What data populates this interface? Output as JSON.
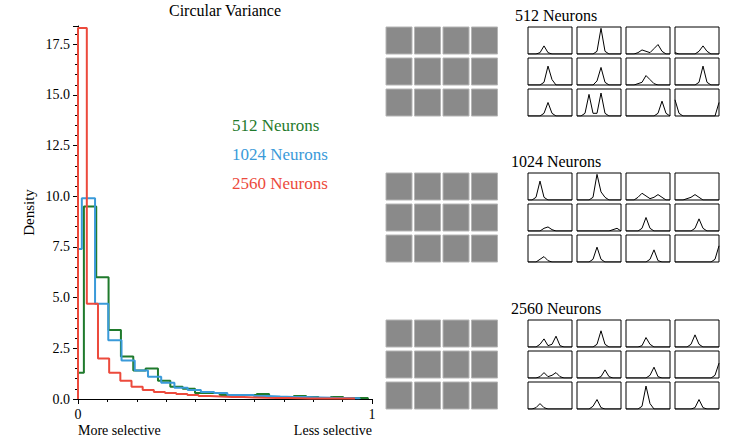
{
  "chart_data": [
    {
      "type": "histogram",
      "title": "Circular Variance",
      "ylabel": "Density",
      "x_annotations": [
        {
          "x": 0,
          "text": "More selective"
        },
        {
          "x": 1,
          "text": "Less selective"
        }
      ],
      "xlim": [
        0,
        1
      ],
      "xticks": [
        0,
        1
      ],
      "ylim": [
        0,
        18.4
      ],
      "yticks": [
        {
          "value": 0,
          "label": "0.0"
        },
        {
          "value": 2.5,
          "label": "2.5"
        },
        {
          "value": 5,
          "label": "5.0"
        },
        {
          "value": 7.5,
          "label": "7.5"
        },
        {
          "value": 10,
          "label": "10.0"
        },
        {
          "value": 12.5,
          "label": "12.5"
        },
        {
          "value": 15,
          "label": "15.0"
        },
        {
          "value": 17.5,
          "label": "17.5"
        }
      ],
      "grid": false,
      "legend": "right",
      "series": [
        {
          "name": "512 Neurons",
          "color": "#1f7a2c",
          "bins": [
            0,
            0.02,
            0.062,
            0.104,
            0.146,
            0.188,
            0.23,
            0.272,
            0.314,
            0.356,
            0.398,
            0.44,
            0.482,
            0.524,
            0.566,
            0.608,
            0.65,
            0.692,
            0.734,
            0.776,
            0.818,
            0.86,
            0.902,
            0.944,
            0.986
          ],
          "values": [
            1.3,
            9.5,
            6.0,
            3.4,
            2.1,
            1.4,
            1.5,
            0.9,
            0.6,
            0.5,
            0.3,
            0.3,
            0.2,
            0.15,
            0.2,
            0.25,
            0.1,
            0.1,
            0.15,
            0.1,
            0.05,
            0.1,
            0.05,
            0.05
          ]
        },
        {
          "name": "1024 Neurons",
          "color": "#3a9ad9",
          "bins": [
            0,
            0.013,
            0.058,
            0.103,
            0.148,
            0.193,
            0.238,
            0.283,
            0.328,
            0.373,
            0.418,
            0.463,
            0.508,
            0.553,
            0.598,
            0.643,
            0.688,
            0.733,
            0.778,
            0.823,
            0.868,
            0.913,
            0.958
          ],
          "values": [
            7.4,
            9.9,
            4.7,
            2.9,
            1.9,
            1.4,
            1.1,
            0.8,
            0.55,
            0.45,
            0.35,
            0.3,
            0.2,
            0.2,
            0.15,
            0.12,
            0.1,
            0.1,
            0.08,
            0.06,
            0.05,
            0.04
          ]
        },
        {
          "name": "2560 Neurons",
          "color": "#ec4a3c",
          "bins": [
            0,
            0.03,
            0.068,
            0.106,
            0.144,
            0.182,
            0.22,
            0.258,
            0.296,
            0.334,
            0.372,
            0.41,
            0.448,
            0.486,
            0.524,
            0.562,
            0.6,
            0.638,
            0.676,
            0.714,
            0.752,
            0.79,
            0.828,
            0.866,
            0.904,
            0.942
          ],
          "values": [
            18.3,
            4.7,
            2.0,
            1.3,
            0.9,
            0.6,
            0.45,
            0.35,
            0.3,
            0.25,
            0.2,
            0.15,
            0.12,
            0.1,
            0.1,
            0.08,
            0.06,
            0.05,
            0.05,
            0.04,
            0.03,
            0.03,
            0.02,
            0.02,
            0.02
          ]
        }
      ]
    },
    {
      "type": "line",
      "title": "512 Neurons",
      "tick_labels": false,
      "ylim": [
        0,
        1
      ],
      "color": "#000000",
      "patches": 12,
      "series": [
        {
          "values": [
            0,
            0,
            0,
            0.05,
            0.3,
            0.05,
            0,
            0,
            0,
            0,
            0,
            0
          ]
        },
        {
          "values": [
            0,
            0,
            0,
            0,
            0,
            0.1,
            0.95,
            0.1,
            0,
            0,
            0,
            0
          ]
        },
        {
          "values": [
            0,
            0,
            0,
            0.05,
            0.15,
            0.1,
            0.05,
            0.2,
            0.35,
            0.1,
            0,
            0
          ]
        },
        {
          "values": [
            0.05,
            0,
            0,
            0,
            0,
            0,
            0.1,
            0.3,
            0.1,
            0,
            0,
            0
          ]
        },
        {
          "values": [
            0,
            0,
            0,
            0,
            0.1,
            0.7,
            0.2,
            0,
            0,
            0,
            0,
            0
          ]
        },
        {
          "values": [
            0,
            0,
            0,
            0,
            0,
            0.15,
            0.65,
            0.1,
            0,
            0,
            0,
            0
          ]
        },
        {
          "values": [
            0,
            0,
            0,
            0.05,
            0.1,
            0.35,
            0.2,
            0.05,
            0,
            0,
            0,
            0
          ]
        },
        {
          "values": [
            0,
            0,
            0,
            0,
            0,
            0,
            0.1,
            0.7,
            0.1,
            0,
            0,
            0
          ]
        },
        {
          "values": [
            0,
            0,
            0,
            0,
            0.1,
            0.5,
            0.1,
            0,
            0,
            0,
            0,
            0
          ]
        },
        {
          "values": [
            0,
            0,
            0.1,
            0.8,
            0.1,
            0.1,
            0.85,
            0.1,
            0,
            0,
            0,
            0
          ]
        },
        {
          "values": [
            0,
            0,
            0,
            0,
            0,
            0,
            0,
            0,
            0.1,
            0.55,
            0.1,
            0
          ]
        },
        {
          "values": [
            0.6,
            0.1,
            0,
            0,
            0,
            0,
            0,
            0,
            0,
            0,
            0,
            0.5
          ]
        }
      ]
    },
    {
      "type": "line",
      "title": "1024 Neurons",
      "tick_labels": false,
      "ylim": [
        0,
        1
      ],
      "color": "#000000",
      "patches": 12,
      "series": [
        {
          "values": [
            0,
            0,
            0.1,
            0.7,
            0.1,
            0,
            0,
            0,
            0,
            0,
            0,
            0
          ]
        },
        {
          "values": [
            0,
            0,
            0,
            0,
            0.1,
            0.95,
            0.3,
            0.1,
            0,
            0,
            0,
            0
          ]
        },
        {
          "values": [
            0,
            0,
            0,
            0.1,
            0.25,
            0.15,
            0.05,
            0.1,
            0.2,
            0.1,
            0,
            0
          ]
        },
        {
          "values": [
            0,
            0,
            0,
            0.05,
            0.1,
            0.2,
            0.1,
            0,
            0,
            0,
            0,
            0
          ]
        },
        {
          "values": [
            0,
            0,
            0,
            0,
            0.1,
            0.15,
            0.05,
            0,
            0,
            0,
            0,
            0
          ]
        },
        {
          "values": [
            0,
            0,
            0,
            0,
            0,
            0,
            0,
            0,
            0,
            0.05,
            0.1,
            0
          ]
        },
        {
          "values": [
            0,
            0,
            0,
            0,
            0.1,
            0.5,
            0.1,
            0,
            0,
            0,
            0,
            0
          ]
        },
        {
          "values": [
            0,
            0,
            0,
            0,
            0,
            0.1,
            0.45,
            0.1,
            0,
            0,
            0,
            0
          ]
        },
        {
          "values": [
            0,
            0,
            0,
            0.1,
            0.2,
            0.05,
            0,
            0,
            0,
            0,
            0,
            0
          ]
        },
        {
          "values": [
            0,
            0,
            0,
            0,
            0.1,
            0.55,
            0.1,
            0,
            0,
            0,
            0,
            0
          ]
        },
        {
          "values": [
            0,
            0,
            0,
            0,
            0,
            0,
            0.1,
            0.45,
            0.05,
            0,
            0,
            0
          ]
        },
        {
          "values": [
            0,
            0,
            0,
            0,
            0,
            0,
            0,
            0,
            0,
            0,
            0.1,
            0.6
          ]
        }
      ]
    },
    {
      "type": "line",
      "title": "2560 Neurons",
      "tick_labels": false,
      "ylim": [
        0,
        1
      ],
      "color": "#000000",
      "patches": 12,
      "series": [
        {
          "values": [
            0,
            0,
            0,
            0.1,
            0.3,
            0.05,
            0.1,
            0.4,
            0.05,
            0,
            0,
            0
          ]
        },
        {
          "values": [
            0,
            0,
            0,
            0,
            0,
            0.1,
            0.6,
            0.1,
            0,
            0,
            0,
            0
          ]
        },
        {
          "values": [
            0,
            0,
            0,
            0,
            0.05,
            0.35,
            0.1,
            0,
            0,
            0,
            0,
            0
          ]
        },
        {
          "values": [
            0,
            0,
            0,
            0,
            0.1,
            0.45,
            0.1,
            0,
            0,
            0,
            0,
            0
          ]
        },
        {
          "values": [
            0,
            0,
            0,
            0.05,
            0.2,
            0.05,
            0.1,
            0.2,
            0.05,
            0,
            0,
            0
          ]
        },
        {
          "values": [
            0,
            0,
            0,
            0,
            0,
            0,
            0.05,
            0.3,
            0.05,
            0,
            0,
            0
          ]
        },
        {
          "values": [
            0,
            0,
            0,
            0,
            0,
            0,
            0.1,
            0.4,
            0.05,
            0,
            0,
            0
          ]
        },
        {
          "values": [
            0,
            0,
            0,
            0,
            0,
            0,
            0,
            0,
            0,
            0,
            0.1,
            0.55
          ]
        },
        {
          "values": [
            0,
            0,
            0.05,
            0.2,
            0.05,
            0,
            0,
            0,
            0,
            0,
            0,
            0
          ]
        },
        {
          "values": [
            0,
            0,
            0,
            0,
            0.1,
            0.35,
            0.05,
            0,
            0,
            0,
            0,
            0
          ]
        },
        {
          "values": [
            0,
            0,
            0,
            0,
            0.1,
            0.85,
            0.2,
            0,
            0,
            0,
            0,
            0
          ]
        },
        {
          "values": [
            0,
            0,
            0,
            0,
            0,
            0.05,
            0.35,
            0.05,
            0,
            0,
            0,
            0
          ]
        }
      ]
    }
  ]
}
